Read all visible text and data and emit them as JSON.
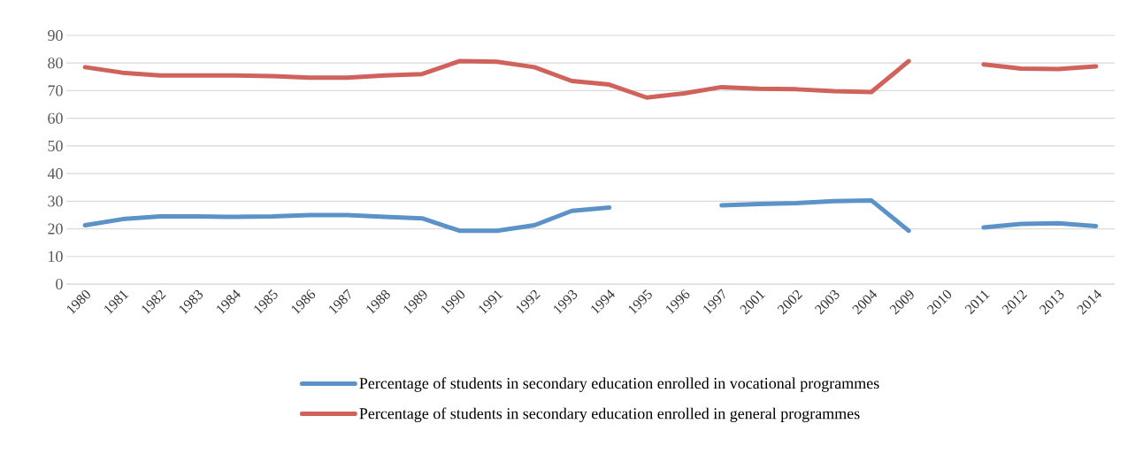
{
  "chart_data": {
    "type": "line",
    "categories": [
      "1980",
      "1981",
      "1982",
      "1983",
      "1984",
      "1985",
      "1986",
      "1987",
      "1988",
      "1989",
      "1990",
      "1991",
      "1992",
      "1993",
      "1994",
      "1995",
      "1996",
      "1997",
      "2001",
      "2002",
      "2003",
      "2004",
      "2009",
      "2010",
      "2011",
      "2012",
      "2013",
      "2014"
    ],
    "series": [
      {
        "name": "Percentage of students in secondary education enrolled in vocational programmes",
        "color": "#5b93c8",
        "values": [
          21.3,
          23.5,
          24.5,
          24.5,
          24.3,
          24.5,
          25,
          25,
          24.3,
          23.8,
          19.3,
          19.3,
          21.3,
          26.5,
          27.7,
          null,
          null,
          28.5,
          29,
          29.3,
          30,
          30.3,
          19.3,
          null,
          20.5,
          21.8,
          22,
          21
        ]
      },
      {
        "name": "Percentage of students in secondary education enrolled in general programmes",
        "color": "#d0625c",
        "values": [
          78.5,
          76.5,
          75.5,
          75.5,
          75.5,
          75.3,
          74.7,
          74.7,
          75.5,
          76,
          80.7,
          80.5,
          78.5,
          73.5,
          72.2,
          67.5,
          69,
          71.3,
          70.7,
          70.5,
          69.8,
          69.5,
          80.7,
          null,
          79.5,
          78,
          77.8,
          78.8
        ]
      }
    ],
    "ylim": [
      0,
      90
    ],
    "yticks": [
      0,
      10,
      20,
      30,
      40,
      50,
      60,
      70,
      80,
      90
    ],
    "grid": "y",
    "legend": "bottom",
    "line_style": "solid"
  }
}
